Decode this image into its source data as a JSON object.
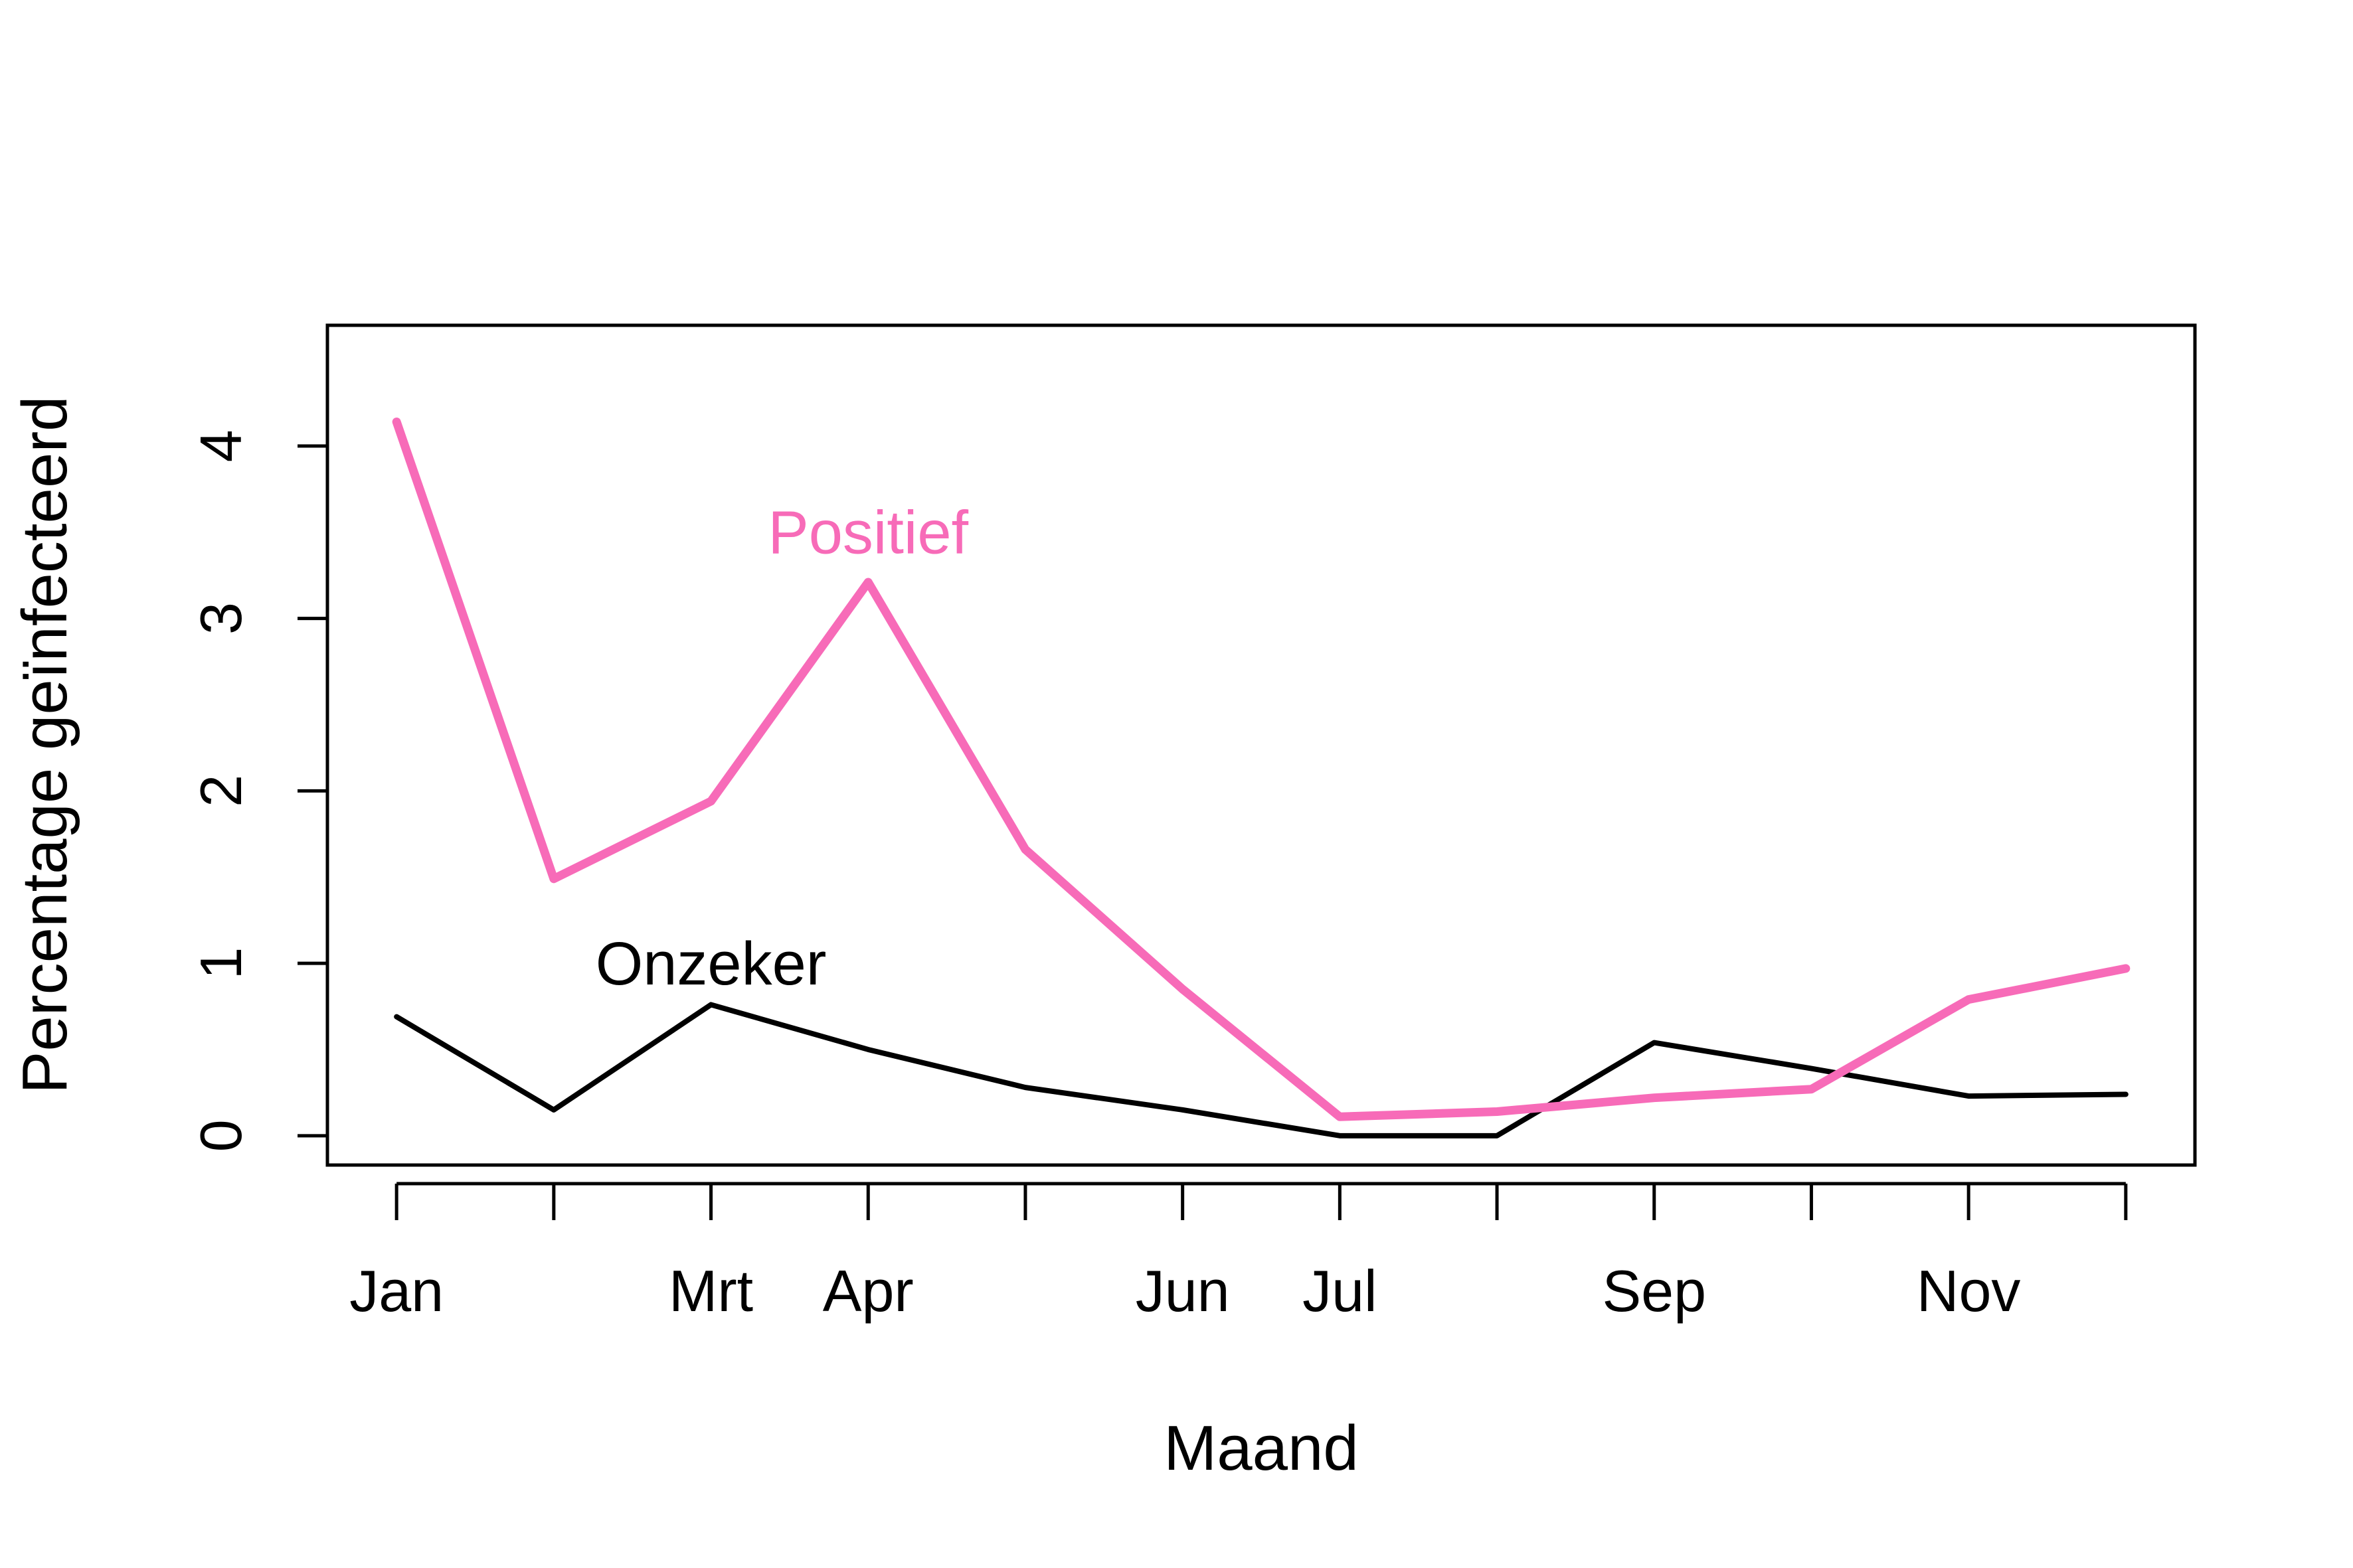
{
  "chart_data": {
    "type": "line",
    "title": "",
    "xlabel": "Maand",
    "ylabel": "Percentage geïnfecteerd",
    "x": [
      1,
      2,
      3,
      4,
      5,
      6,
      7,
      8,
      9,
      10,
      11,
      12
    ],
    "x_tick_labels": [
      "Jan",
      "",
      "Mrt",
      "Apr",
      "",
      "Jun",
      "Jul",
      "",
      "Sep",
      "",
      "Nov",
      ""
    ],
    "xlim": [
      0.56,
      12.44
    ],
    "y_ticks": [
      0,
      1,
      2,
      3,
      4
    ],
    "ylim": [
      -0.17,
      4.7
    ],
    "grid": false,
    "legend": "none",
    "series": [
      {
        "name": "Positief",
        "color": "#F76BB8",
        "values": [
          4.14,
          1.49,
          1.94,
          3.21,
          1.66,
          0.85,
          0.11,
          0.14,
          0.22,
          0.27,
          0.79,
          0.97
        ],
        "label_at": [
          4.0,
          3.5
        ]
      },
      {
        "name": "Onzeker",
        "color": "#000000",
        "values": [
          0.69,
          0.15,
          0.76,
          0.5,
          0.28,
          0.15,
          0.0,
          0.0,
          0.54,
          0.39,
          0.23,
          0.24
        ],
        "label_at": [
          3.0,
          1.0
        ]
      }
    ]
  }
}
